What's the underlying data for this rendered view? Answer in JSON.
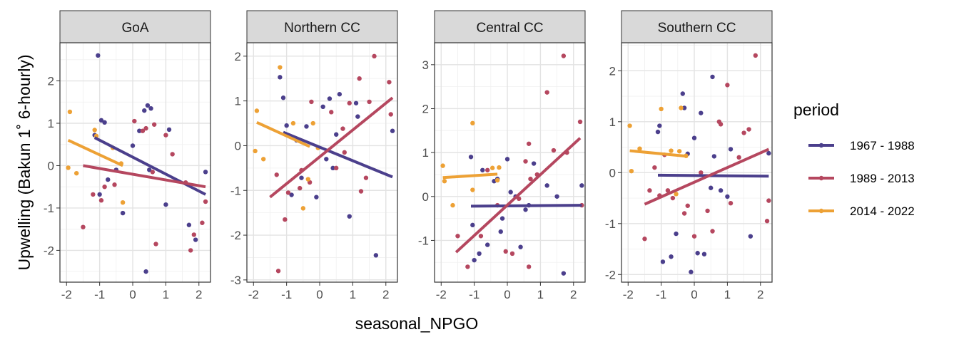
{
  "chart_data": {
    "type": "scatter",
    "xlabel": "seasonal_NPGO",
    "ylabel": "Upwelling (Bakun 1˚ 6-hourly)",
    "legend": {
      "title": "period",
      "placement": "right",
      "entries": [
        {
          "label": "1967 - 1988",
          "color": "#4b3f8c"
        },
        {
          "label": "1989 - 2013",
          "color": "#b5475f"
        },
        {
          "label": "2014 - 2022",
          "color": "#eda135"
        }
      ]
    },
    "grid": true,
    "x_ticks": [
      -2,
      -1,
      0,
      1,
      2
    ],
    "xlim": [
      -2.2,
      2.35
    ],
    "panels": [
      {
        "title": "GoA",
        "ylim": [
          -2.75,
          2.9
        ],
        "y_ticks": [
          -2,
          -1,
          0,
          1,
          2
        ],
        "series": [
          {
            "period": "1967 - 1988",
            "points": [
              [
                -1.05,
                2.6
              ],
              [
                -0.95,
                1.07
              ],
              [
                -0.85,
                1.02
              ],
              [
                -1.15,
                0.72
              ],
              [
                -1.0,
                -0.68
              ],
              [
                -0.75,
                -0.33
              ],
              [
                -0.5,
                -0.1
              ],
              [
                -0.3,
                -1.12
              ],
              [
                0.0,
                0.47
              ],
              [
                0.2,
                0.82
              ],
              [
                0.35,
                1.3
              ],
              [
                0.45,
                1.42
              ],
              [
                0.55,
                1.35
              ],
              [
                0.5,
                -0.1
              ],
              [
                0.4,
                -2.5
              ],
              [
                1.0,
                -0.92
              ],
              [
                1.1,
                0.85
              ],
              [
                1.7,
                -1.4
              ],
              [
                1.9,
                -1.75
              ],
              [
                2.2,
                -0.15
              ]
            ],
            "fit": [
              [
                -1.15,
                0.66
              ],
              [
                2.2,
                -0.68
              ]
            ]
          },
          {
            "period": "1989 - 2013",
            "points": [
              [
                -1.5,
                -1.45
              ],
              [
                -1.2,
                -0.68
              ],
              [
                -0.95,
                -0.82
              ],
              [
                -0.85,
                -0.5
              ],
              [
                -0.55,
                -0.45
              ],
              [
                0.05,
                1.05
              ],
              [
                0.4,
                0.88
              ],
              [
                0.65,
                0.97
              ],
              [
                0.7,
                -1.85
              ],
              [
                0.3,
                0.82
              ],
              [
                0.6,
                -0.15
              ],
              [
                1.0,
                0.72
              ],
              [
                1.2,
                0.27
              ],
              [
                1.6,
                -0.4
              ],
              [
                1.75,
                -2.0
              ],
              [
                1.85,
                -1.63
              ],
              [
                2.1,
                -1.35
              ],
              [
                2.2,
                -0.85
              ]
            ],
            "fit": [
              [
                -1.5,
                0.0
              ],
              [
                2.2,
                -0.5
              ]
            ]
          },
          {
            "period": "2014 - 2022",
            "points": [
              [
                -1.9,
                1.27
              ],
              [
                -1.95,
                -0.05
              ],
              [
                -1.7,
                -0.18
              ],
              [
                -1.15,
                0.84
              ],
              [
                -1.1,
                0.7
              ],
              [
                -0.6,
                0.42
              ],
              [
                -0.35,
                0.05
              ],
              [
                -0.3,
                -0.87
              ]
            ],
            "fit": [
              [
                -1.95,
                0.6
              ],
              [
                -0.3,
                0.0
              ]
            ]
          }
        ]
      },
      {
        "title": "Northern CC",
        "ylim": [
          -3.05,
          2.3
        ],
        "y_ticks": [
          -3,
          -2,
          -1,
          0,
          1,
          2
        ],
        "series": [
          {
            "period": "1967 - 1988",
            "points": [
              [
                -1.2,
                1.53
              ],
              [
                -1.1,
                1.07
              ],
              [
                -1.0,
                0.45
              ],
              [
                -0.85,
                -1.1
              ],
              [
                -0.7,
                0.12
              ],
              [
                -0.55,
                -0.72
              ],
              [
                -0.4,
                0.43
              ],
              [
                -0.1,
                -1.15
              ],
              [
                0.1,
                0.87
              ],
              [
                0.2,
                -0.3
              ],
              [
                0.3,
                1.05
              ],
              [
                0.4,
                -0.5
              ],
              [
                0.6,
                1.15
              ],
              [
                0.5,
                0.25
              ],
              [
                0.9,
                -1.58
              ],
              [
                1.1,
                0.95
              ],
              [
                1.15,
                0.65
              ],
              [
                1.7,
                -2.45
              ],
              [
                2.2,
                0.33
              ]
            ],
            "fit": [
              [
                -1.1,
                0.3
              ],
              [
                2.2,
                -0.7
              ]
            ]
          },
          {
            "period": "1989 - 2013",
            "points": [
              [
                -1.25,
                -2.8
              ],
              [
                -1.05,
                -1.65
              ],
              [
                -0.95,
                -1.05
              ],
              [
                -0.55,
                -0.55
              ],
              [
                -0.3,
                -0.82
              ],
              [
                -0.25,
                0.98
              ],
              [
                0.35,
                0.75
              ],
              [
                0.5,
                -0.5
              ],
              [
                0.7,
                0.38
              ],
              [
                0.75,
                -0.15
              ],
              [
                0.9,
                0.95
              ],
              [
                1.2,
                1.5
              ],
              [
                1.25,
                -1.02
              ],
              [
                1.5,
                0.98
              ],
              [
                1.65,
                2.0
              ],
              [
                2.1,
                1.42
              ],
              [
                2.15,
                0.7
              ],
              [
                1.4,
                -0.72
              ],
              [
                -1.3,
                -0.65
              ],
              [
                -0.6,
                -0.95
              ]
            ],
            "fit": [
              [
                -1.5,
                -1.15
              ],
              [
                2.2,
                1.07
              ]
            ]
          },
          {
            "period": "2014 - 2022",
            "points": [
              [
                -1.95,
                -0.12
              ],
              [
                -1.9,
                0.78
              ],
              [
                -1.7,
                -0.3
              ],
              [
                -1.2,
                1.75
              ],
              [
                -0.8,
                0.5
              ],
              [
                -0.5,
                -1.4
              ],
              [
                -0.2,
                0.5
              ],
              [
                -0.35,
                -0.75
              ],
              [
                -0.05,
                -0.05
              ]
            ],
            "fit": [
              [
                -1.9,
                0.52
              ],
              [
                -0.3,
                -0.02
              ]
            ]
          }
        ]
      },
      {
        "title": "Central CC",
        "ylim": [
          -1.95,
          3.5
        ],
        "y_ticks": [
          -1,
          0,
          1,
          2,
          3
        ],
        "series": [
          {
            "period": "1967 - 1988",
            "points": [
              [
                -1.1,
                0.9
              ],
              [
                -1.0,
                -1.45
              ],
              [
                -0.85,
                -1.3
              ],
              [
                -0.75,
                0.6
              ],
              [
                -0.6,
                -1.1
              ],
              [
                -0.4,
                0.35
              ],
              [
                -0.3,
                0.4
              ],
              [
                -0.2,
                -0.8
              ],
              [
                0.0,
                0.85
              ],
              [
                0.1,
                0.1
              ],
              [
                0.25,
                0.0
              ],
              [
                0.4,
                -1.15
              ],
              [
                0.55,
                -0.3
              ],
              [
                0.65,
                -0.2
              ],
              [
                0.8,
                0.75
              ],
              [
                1.2,
                0.25
              ],
              [
                1.5,
                0.0
              ],
              [
                1.7,
                -1.75
              ],
              [
                2.25,
                0.25
              ],
              [
                -0.15,
                -0.5
              ],
              [
                -1.05,
                -0.65
              ]
            ],
            "fit": [
              [
                -1.1,
                -0.22
              ],
              [
                2.25,
                -0.2
              ]
            ]
          },
          {
            "period": "1989 - 2013",
            "points": [
              [
                -1.5,
                -0.9
              ],
              [
                -1.2,
                -1.6
              ],
              [
                -0.8,
                -0.9
              ],
              [
                -0.6,
                0.6
              ],
              [
                -0.3,
                -0.2
              ],
              [
                -0.05,
                -1.25
              ],
              [
                0.15,
                -1.3
              ],
              [
                0.35,
                -0.05
              ],
              [
                0.55,
                0.8
              ],
              [
                0.65,
                1.2
              ],
              [
                0.65,
                -1.6
              ],
              [
                0.7,
                0.4
              ],
              [
                0.9,
                0.5
              ],
              [
                1.2,
                2.37
              ],
              [
                1.4,
                1.05
              ],
              [
                1.7,
                3.2
              ],
              [
                1.8,
                1.0
              ],
              [
                2.2,
                1.7
              ],
              [
                2.25,
                -0.2
              ]
            ],
            "fit": [
              [
                -1.55,
                -1.27
              ],
              [
                2.2,
                1.33
              ]
            ]
          },
          {
            "period": "2014 - 2022",
            "points": [
              [
                -1.95,
                0.7
              ],
              [
                -1.9,
                0.35
              ],
              [
                -1.65,
                -0.2
              ],
              [
                -1.05,
                1.67
              ],
              [
                -1.05,
                0.15
              ],
              [
                -0.45,
                0.65
              ],
              [
                -0.3,
                0.37
              ],
              [
                -0.25,
                0.66
              ]
            ],
            "fit": [
              [
                -1.95,
                0.43
              ],
              [
                -0.3,
                0.51
              ]
            ]
          }
        ]
      },
      {
        "title": "Southern CC",
        "ylim": [
          -2.15,
          2.55
        ],
        "y_ticks": [
          -2,
          -1,
          0,
          1,
          2
        ],
        "series": [
          {
            "period": "1967 - 1988",
            "points": [
              [
                -1.1,
                0.8
              ],
              [
                -1.05,
                0.92
              ],
              [
                -0.95,
                -1.75
              ],
              [
                -0.7,
                -1.65
              ],
              [
                -0.55,
                -1.2
              ],
              [
                -0.35,
                1.55
              ],
              [
                -0.3,
                1.27
              ],
              [
                -0.2,
                0.37
              ],
              [
                -0.1,
                -1.95
              ],
              [
                0.0,
                0.68
              ],
              [
                0.1,
                -1.58
              ],
              [
                0.2,
                1.17
              ],
              [
                0.3,
                -1.6
              ],
              [
                0.5,
                -0.3
              ],
              [
                0.55,
                1.88
              ],
              [
                0.6,
                0.32
              ],
              [
                0.8,
                -0.35
              ],
              [
                1.0,
                -0.47
              ],
              [
                1.1,
                0.46
              ],
              [
                1.7,
                -1.25
              ],
              [
                2.25,
                0.38
              ]
            ],
            "fit": [
              [
                -1.1,
                -0.05
              ],
              [
                2.25,
                -0.07
              ]
            ]
          },
          {
            "period": "1989 - 2013",
            "points": [
              [
                -1.5,
                -1.3
              ],
              [
                -1.35,
                -0.35
              ],
              [
                -1.2,
                0.1
              ],
              [
                -0.9,
                0.35
              ],
              [
                -0.8,
                -0.35
              ],
              [
                -0.65,
                -0.5
              ],
              [
                -0.3,
                -0.8
              ],
              [
                -0.2,
                -0.65
              ],
              [
                0.0,
                -1.25
              ],
              [
                0.2,
                0.0
              ],
              [
                0.4,
                -0.75
              ],
              [
                0.55,
                -1.15
              ],
              [
                0.75,
                1.0
              ],
              [
                0.8,
                0.95
              ],
              [
                1.0,
                1.72
              ],
              [
                1.1,
                -0.6
              ],
              [
                1.35,
                0.3
              ],
              [
                1.5,
                0.78
              ],
              [
                1.65,
                0.85
              ],
              [
                1.85,
                2.3
              ],
              [
                2.2,
                -0.95
              ],
              [
                2.25,
                -0.55
              ],
              [
                -1.05,
                -0.45
              ]
            ],
            "fit": [
              [
                -1.5,
                -0.62
              ],
              [
                2.25,
                0.46
              ]
            ]
          },
          {
            "period": "2014 - 2022",
            "points": [
              [
                -1.95,
                0.92
              ],
              [
                -1.9,
                0.03
              ],
              [
                -1.65,
                0.47
              ],
              [
                -1.0,
                1.25
              ],
              [
                -0.7,
                0.43
              ],
              [
                -0.55,
                -0.42
              ],
              [
                -0.25,
                0.33
              ],
              [
                -0.4,
                1.27
              ],
              [
                -0.45,
                0.42
              ]
            ],
            "fit": [
              [
                -1.95,
                0.43
              ],
              [
                -0.2,
                0.32
              ]
            ]
          }
        ]
      }
    ]
  }
}
